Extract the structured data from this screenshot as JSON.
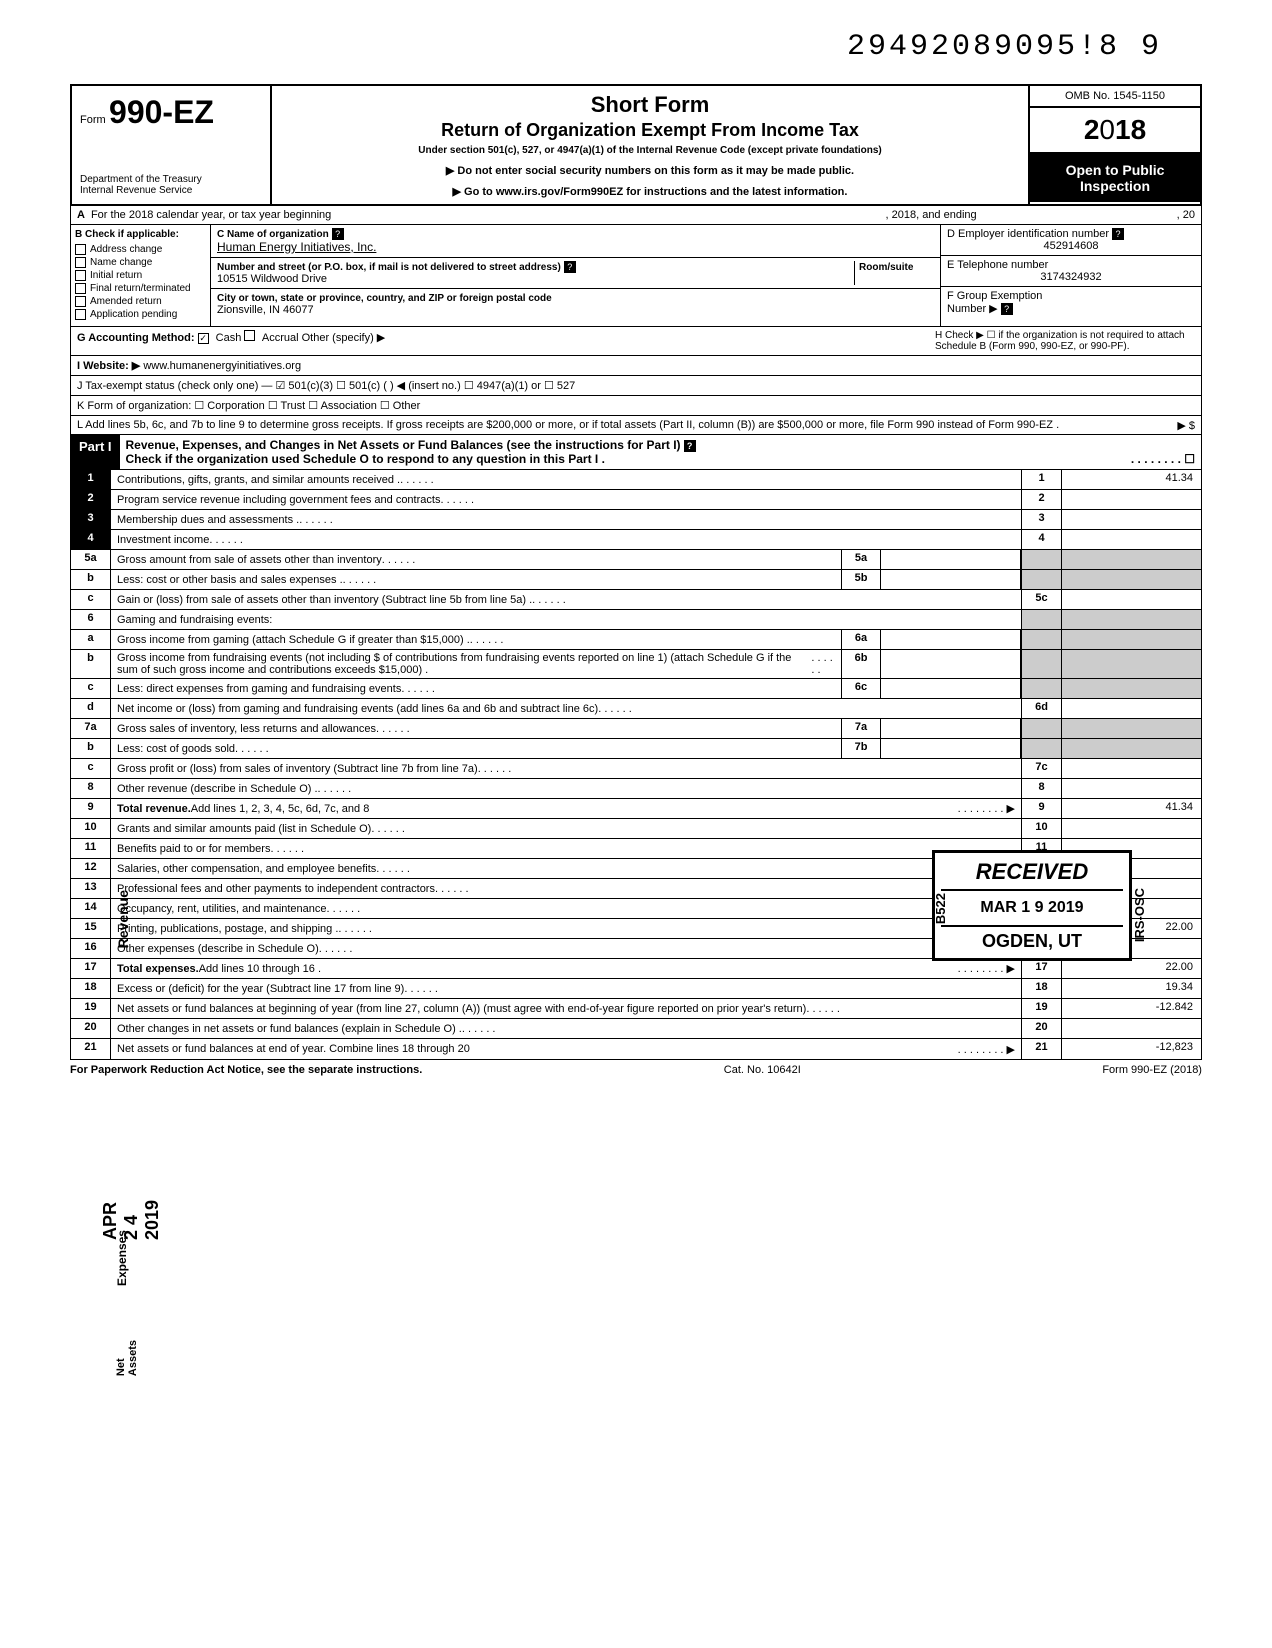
{
  "doc_number": "29492089095!8 9",
  "header": {
    "form_prefix": "Form",
    "form_number": "990-EZ",
    "dept": "Department of the Treasury\nInternal Revenue Service",
    "title1": "Short Form",
    "title2": "Return of Organization Exempt From Income Tax",
    "subtitle": "Under section 501(c), 527, or 4947(a)(1) of the Internal Revenue Code (except private foundations)",
    "note1": "▶ Do not enter social security numbers on this form as it may be made public.",
    "note2": "▶ Go to www.irs.gov/Form990EZ for instructions and the latest information.",
    "omb": "OMB No. 1545-1150",
    "year": "2018",
    "public1": "Open to Public",
    "public2": "Inspection"
  },
  "row_a": {
    "label": "A",
    "text1": "For the 2018 calendar year, or tax year beginning",
    "text2": ", 2018, and ending",
    "text3": ", 20"
  },
  "col_b": {
    "header": "B  Check if applicable:",
    "items": [
      "Address change",
      "Name change",
      "Initial return",
      "Final return/terminated",
      "Amended return",
      "Application pending"
    ]
  },
  "col_c": {
    "name_label": "C  Name of organization",
    "name": "Human Energy Initiatives, Inc.",
    "addr_label": "Number and street (or P.O. box, if mail is not delivered to street address)",
    "room_label": "Room/suite",
    "addr": "10515 Wildwood Drive",
    "city_label": "City or town, state or province, country, and ZIP or foreign postal code",
    "city": "Zionsville, IN  46077"
  },
  "col_d": {
    "ein_label": "D Employer identification number",
    "ein": "452914608",
    "tel_label": "E Telephone number",
    "tel": "3174324932",
    "group_label": "F Group Exemption",
    "group_label2": "Number ▶"
  },
  "lines": {
    "g": "G  Accounting Method:",
    "g_cash": "Cash",
    "g_accrual": "Accrual",
    "g_other": "Other (specify) ▶",
    "h": "H  Check ▶ ☐ if the organization is not required to attach Schedule B (Form 990, 990-EZ, or 990-PF).",
    "i": "I   Website: ▶",
    "i_val": "www.humanenergyinitiatives.org",
    "j": "J  Tax-exempt status (check only one) — ☑ 501(c)(3)   ☐ 501(c) (        ) ◀ (insert no.) ☐ 4947(a)(1) or   ☐ 527",
    "k": "K  Form of organization:   ☐ Corporation    ☐ Trust    ☐ Association    ☐ Other",
    "l": "L  Add lines 5b, 6c, and 7b to line 9 to determine gross receipts. If gross receipts are $200,000 or more, or if total assets (Part II, column (B)) are $500,000 or more, file Form 990 instead of Form 990-EZ .",
    "l_arrow": "▶   $"
  },
  "part1": {
    "label": "Part I",
    "title": "Revenue, Expenses, and Changes in Net Assets or Fund Balances (see the instructions for Part I)",
    "check": "Check if the organization used Schedule O to respond to any question in this Part I ."
  },
  "rows": [
    {
      "n": "1",
      "help": true,
      "desc": "Contributions, gifts, grants, and similar amounts received .",
      "col": "1",
      "val": "41.34"
    },
    {
      "n": "2",
      "help": true,
      "desc": "Program service revenue including government fees and contracts",
      "col": "2",
      "val": ""
    },
    {
      "n": "3",
      "help": true,
      "desc": "Membership dues and assessments .",
      "col": "3",
      "val": ""
    },
    {
      "n": "4",
      "help": true,
      "desc": "Investment income",
      "col": "4",
      "val": ""
    },
    {
      "n": "5a",
      "desc": "Gross amount from sale of assets other than inventory",
      "mid": "5a"
    },
    {
      "n": "b",
      "desc": "Less: cost or other basis and sales expenses .",
      "mid": "5b"
    },
    {
      "n": "c",
      "desc": "Gain or (loss) from sale of assets other than inventory (Subtract line 5b from line 5a) .",
      "col": "5c",
      "val": ""
    },
    {
      "n": "6",
      "desc": "Gaming and fundraising events:"
    },
    {
      "n": "a",
      "desc": "Gross income from gaming (attach Schedule G if greater than $15,000) .",
      "mid": "6a"
    },
    {
      "n": "b",
      "desc": "Gross income from fundraising events (not including  $                        of contributions from fundraising events reported on line 1) (attach Schedule G if the sum of such gross income and contributions exceeds $15,000) .",
      "mid": "6b"
    },
    {
      "n": "c",
      "desc": "Less: direct expenses from gaming and fundraising events",
      "mid": "6c"
    },
    {
      "n": "d",
      "desc": "Net income or (loss) from gaming and fundraising events (add lines 6a and 6b and subtract line 6c)",
      "col": "6d",
      "val": ""
    },
    {
      "n": "7a",
      "desc": "Gross sales of inventory, less returns and allowances",
      "mid": "7a"
    },
    {
      "n": "b",
      "desc": "Less: cost of goods sold",
      "mid": "7b"
    },
    {
      "n": "c",
      "desc": "Gross profit or (loss) from sales of inventory (Subtract line 7b from line 7a)",
      "col": "7c",
      "val": ""
    },
    {
      "n": "8",
      "desc": "Other revenue (describe in Schedule O) .",
      "col": "8",
      "val": ""
    },
    {
      "n": "9",
      "desc": "Total revenue. Add lines 1, 2, 3, 4, 5c, 6d, 7c, and 8",
      "col": "9",
      "val": "41.34",
      "bold": true,
      "arrow": true
    },
    {
      "n": "10",
      "desc": "Grants and similar amounts paid (list in Schedule O)",
      "col": "10",
      "val": ""
    },
    {
      "n": "11",
      "desc": "Benefits paid to or for members",
      "col": "11",
      "val": ""
    },
    {
      "n": "12",
      "desc": "Salaries, other compensation, and employee benefits",
      "col": "12",
      "val": ""
    },
    {
      "n": "13",
      "desc": "Professional fees and other payments to independent contractors",
      "col": "13",
      "val": ""
    },
    {
      "n": "14",
      "desc": "Occupancy, rent, utilities, and maintenance",
      "col": "14",
      "val": ""
    },
    {
      "n": "15",
      "desc": "Printing, publications, postage, and shipping .",
      "col": "15",
      "val": "22.00"
    },
    {
      "n": "16",
      "desc": "Other expenses (describe in Schedule O)",
      "col": "16",
      "val": ""
    },
    {
      "n": "17",
      "desc": "Total expenses. Add lines 10 through 16 .",
      "col": "17",
      "val": "22.00",
      "bold": true,
      "arrow": true
    },
    {
      "n": "18",
      "desc": "Excess or (deficit) for the year (Subtract line 17 from line 9)",
      "col": "18",
      "val": "19.34"
    },
    {
      "n": "19",
      "desc": "Net assets or fund balances at beginning of year (from line 27, column (A)) (must agree with end-of-year figure reported on prior year's return)",
      "col": "19",
      "val": "-12.842"
    },
    {
      "n": "20",
      "desc": "Other changes in net assets or fund balances (explain in Schedule O) .",
      "col": "20",
      "val": ""
    },
    {
      "n": "21",
      "desc": "Net assets or fund balances at end of year. Combine lines 18 through 20",
      "col": "21",
      "val": "-12,823",
      "arrow": true
    }
  ],
  "footer": {
    "left": "For Paperwork Reduction Act Notice, see the separate instructions.",
    "mid": "Cat. No. 10642I",
    "right": "Form 990-EZ (2018)"
  },
  "stamps": {
    "received": "RECEIVED",
    "date": "MAR  1 9 2019",
    "location": "OGDEN, UT",
    "side_l": "B522",
    "side_r": "IRS-OSC",
    "date_stamp": "APR 2 4 2019"
  },
  "side_labels": {
    "revenue": "Revenue",
    "expenses": "Expenses",
    "netassets": "Net Assets"
  }
}
